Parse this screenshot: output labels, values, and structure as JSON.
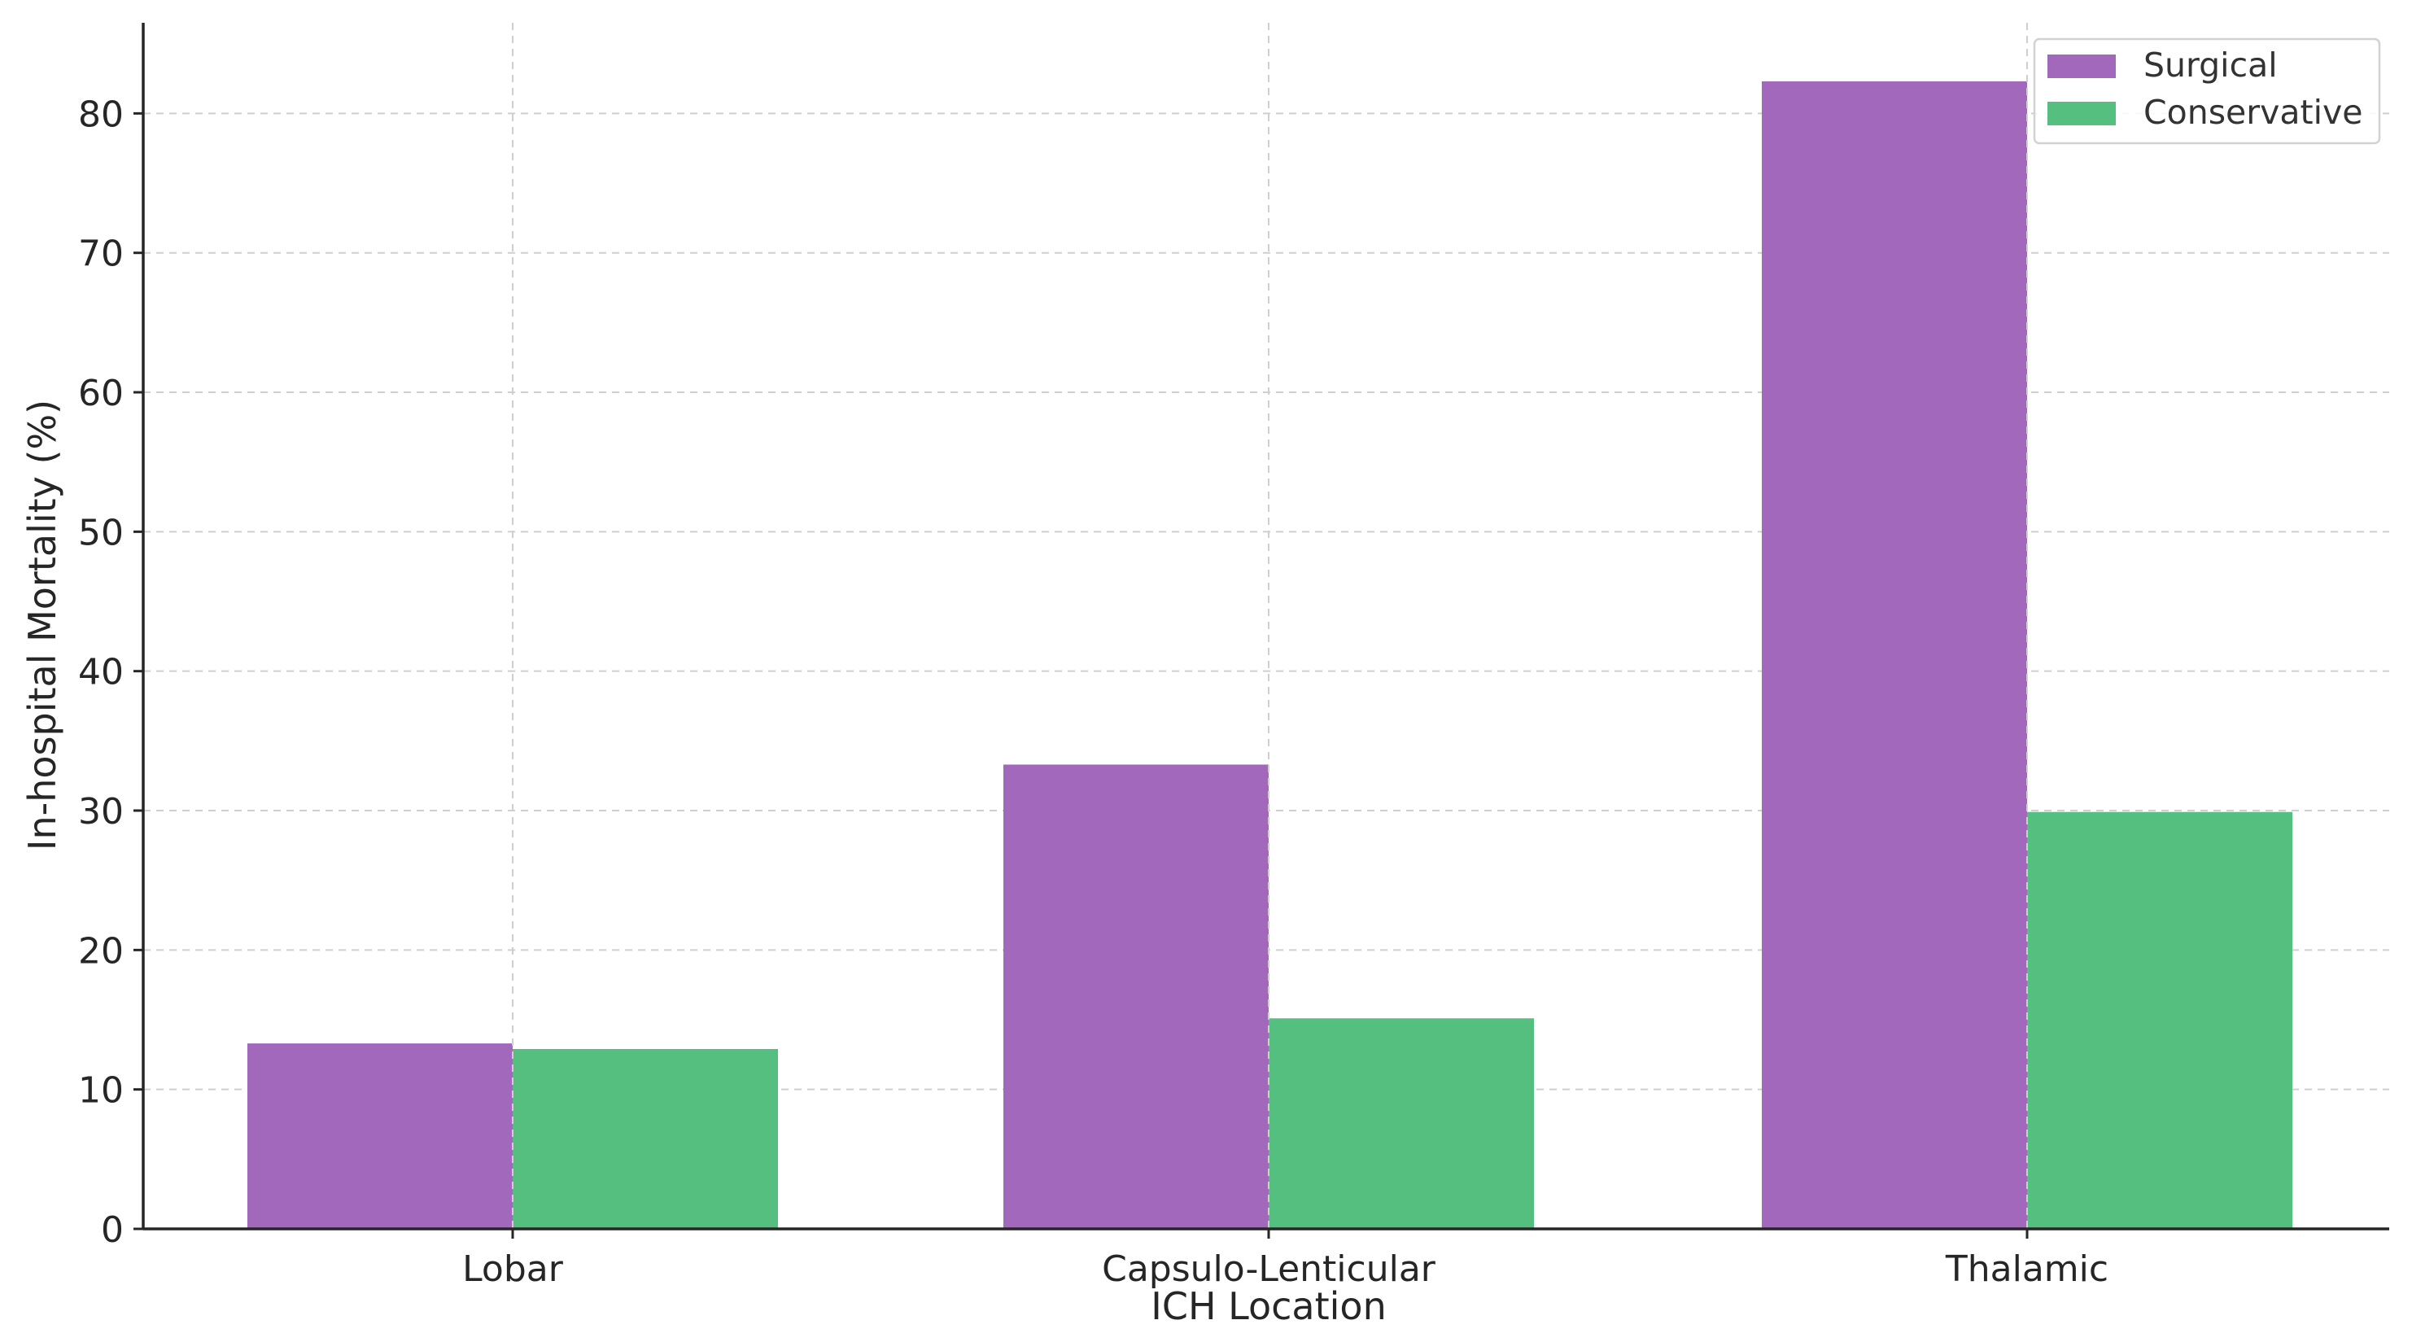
{
  "chart_data": {
    "type": "bar",
    "categories": [
      "Lobar",
      "Capsulo-Lenticular",
      "Thalamic"
    ],
    "series": [
      {
        "name": "Surgical",
        "values": [
          13.3,
          33.3,
          82.3
        ],
        "color": "#a268bc"
      },
      {
        "name": "Conservative",
        "values": [
          12.9,
          15.1,
          29.9
        ],
        "color": "#55bf80"
      }
    ],
    "title": "",
    "xlabel": "ICH Location",
    "ylabel": "In-hospital Mortality (%)",
    "ylim": [
      0,
      86.5
    ],
    "yticks": [
      0,
      10,
      20,
      30,
      40,
      50,
      60,
      70,
      80
    ],
    "grid": true,
    "legend": "top-right"
  }
}
